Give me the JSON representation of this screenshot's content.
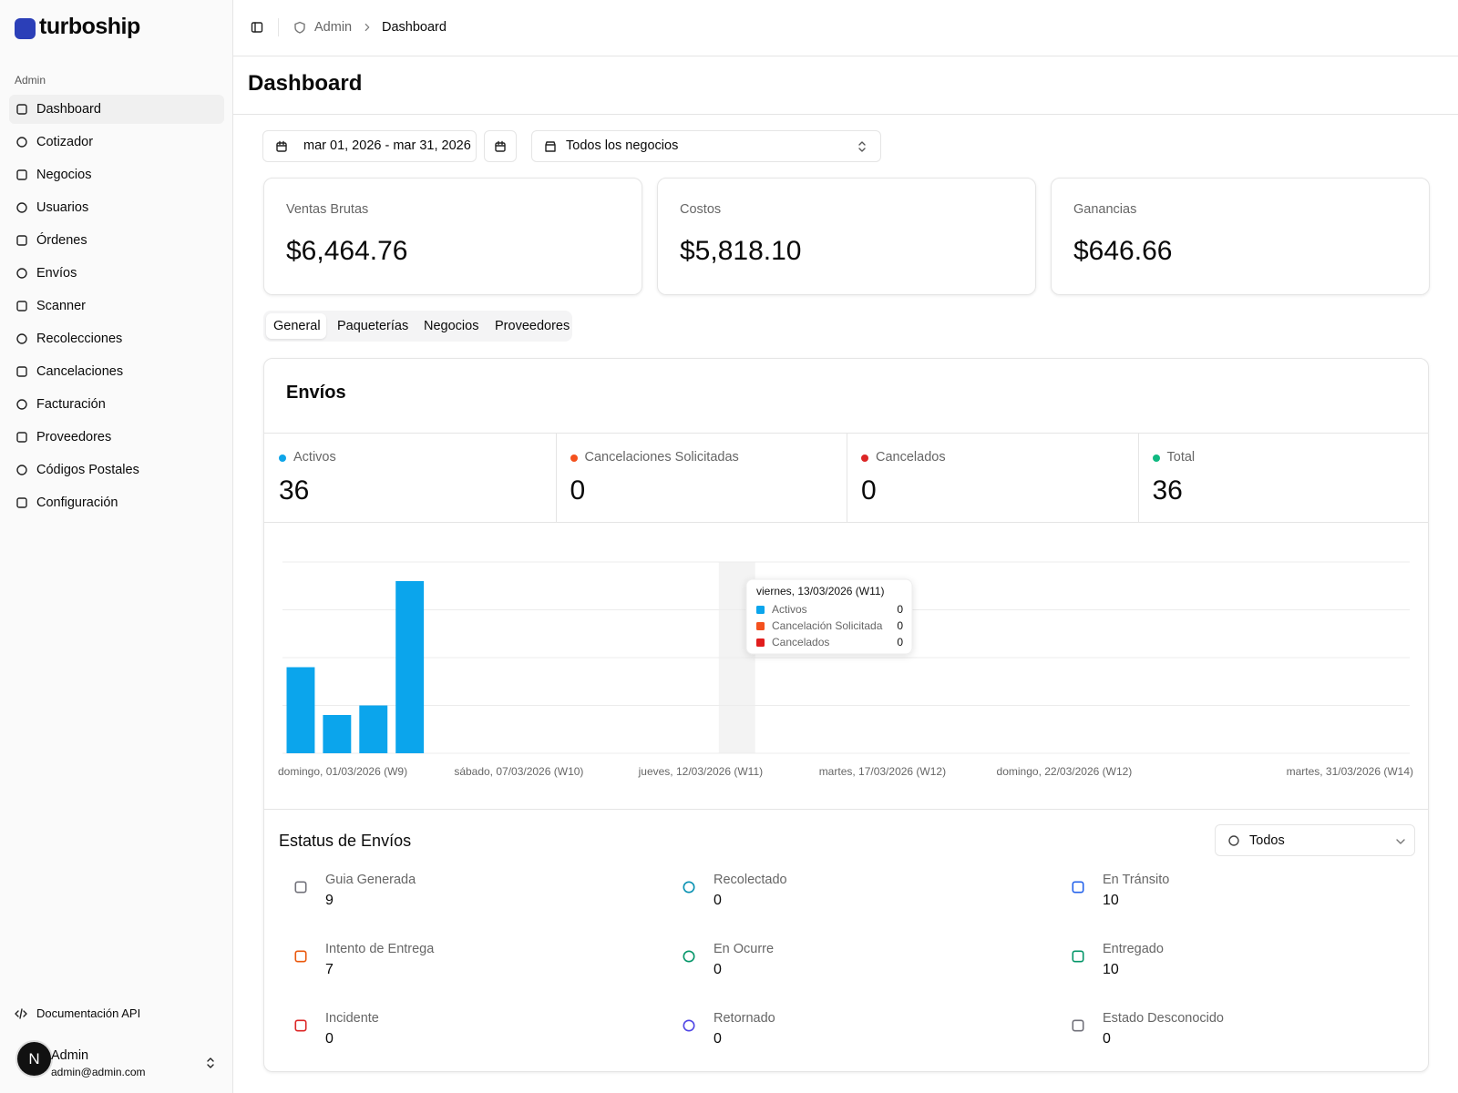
{
  "sidebar": {
    "brand": "turboship",
    "group": "Admin",
    "nav": [
      "Dashboard",
      "Cotizador",
      "Negocios",
      "Usuarios",
      "Órdenes",
      "Envíos",
      "Scanner",
      "Recolecciones",
      "Cancelaciones",
      "Facturación",
      "Proveedores",
      "Códigos Postales",
      "Configuración"
    ],
    "footer_link": "Documentación API",
    "user": {
      "initial": "N",
      "name": "Admin",
      "email": "admin@admin.com"
    }
  },
  "header": {
    "breadcrumb": [
      "Admin",
      "Dashboard"
    ],
    "title": "Dashboard"
  },
  "filters": {
    "date_range": "mar 01, 2026 - mar 31, 2026",
    "business": "Todos los negocios"
  },
  "cards": [
    {
      "label": "Ventas Brutas",
      "value": "$6,464.76"
    },
    {
      "label": "Costos",
      "value": "$5,818.10"
    },
    {
      "label": "Ganancias",
      "value": "$646.66"
    }
  ],
  "tabs": [
    "General",
    "Paqueterías",
    "Negocios",
    "Proveedores"
  ],
  "envios": {
    "title": "Envíos",
    "stats": [
      {
        "label": "Activos",
        "value": 36,
        "color": "#0ea5e9"
      },
      {
        "label": "Cancelaciones Solicitadas",
        "value": 0,
        "color": "#f4511e"
      },
      {
        "label": "Cancelados",
        "value": 0,
        "color": "#dc2626"
      },
      {
        "label": "Total",
        "value": 36,
        "color": "#10b981"
      }
    ]
  },
  "chart_data": {
    "type": "bar",
    "stacked": true,
    "grid": true,
    "ylim": [
      0,
      20
    ],
    "categories": [
      "domingo, 01/03/2026 (W9)",
      null,
      null,
      null,
      null,
      null,
      "sábado, 07/03/2026 (W10)",
      null,
      null,
      null,
      null,
      "jueves, 12/03/2026 (W11)",
      null,
      null,
      null,
      null,
      "martes, 17/03/2026 (W12)",
      null,
      null,
      null,
      null,
      "domingo, 22/03/2026 (W12)",
      null,
      null,
      null,
      null,
      null,
      null,
      null,
      null,
      "martes, 31/03/2026 (W14)"
    ],
    "series": [
      {
        "name": "Activos",
        "color": "#0ba5ec",
        "values": [
          9,
          4,
          5,
          18,
          0,
          0,
          0,
          0,
          0,
          0,
          0,
          0,
          0,
          0,
          0,
          0,
          0,
          0,
          0,
          0,
          0,
          0,
          0,
          0,
          0,
          0,
          0,
          0,
          0,
          0,
          0
        ]
      },
      {
        "name": "Cancelación Solicitada",
        "color": "#f4511e",
        "values": [
          0,
          0,
          0,
          0,
          0,
          0,
          0,
          0,
          0,
          0,
          0,
          0,
          0,
          0,
          0,
          0,
          0,
          0,
          0,
          0,
          0,
          0,
          0,
          0,
          0,
          0,
          0,
          0,
          0,
          0,
          0
        ]
      },
      {
        "name": "Cancelados",
        "color": "#e11d1d",
        "values": [
          0,
          0,
          0,
          0,
          0,
          0,
          0,
          0,
          0,
          0,
          0,
          0,
          0,
          0,
          0,
          0,
          0,
          0,
          0,
          0,
          0,
          0,
          0,
          0,
          0,
          0,
          0,
          0,
          0,
          0,
          0
        ]
      }
    ],
    "tooltip_title": "viernes, 13/03/2026 (W11)"
  },
  "status": {
    "title": "Estatus de Envíos",
    "filter": "Todos",
    "items": [
      {
        "label": "Guia Generada",
        "value": 9,
        "color": "#71717a"
      },
      {
        "label": "Recolectado",
        "value": 0,
        "color": "#0891b2"
      },
      {
        "label": "En Tránsito",
        "value": 10,
        "color": "#2563eb"
      },
      {
        "label": "Intento de Entrega",
        "value": 7,
        "color": "#ea580c"
      },
      {
        "label": "En Ocurre",
        "value": 0,
        "color": "#059669"
      },
      {
        "label": "Entregado",
        "value": 10,
        "color": "#059669"
      },
      {
        "label": "Incidente",
        "value": 0,
        "color": "#dc2626"
      },
      {
        "label": "Retornado",
        "value": 0,
        "color": "#4f46e5"
      },
      {
        "label": "Estado Desconocido",
        "value": 0,
        "color": "#71717a"
      }
    ]
  }
}
